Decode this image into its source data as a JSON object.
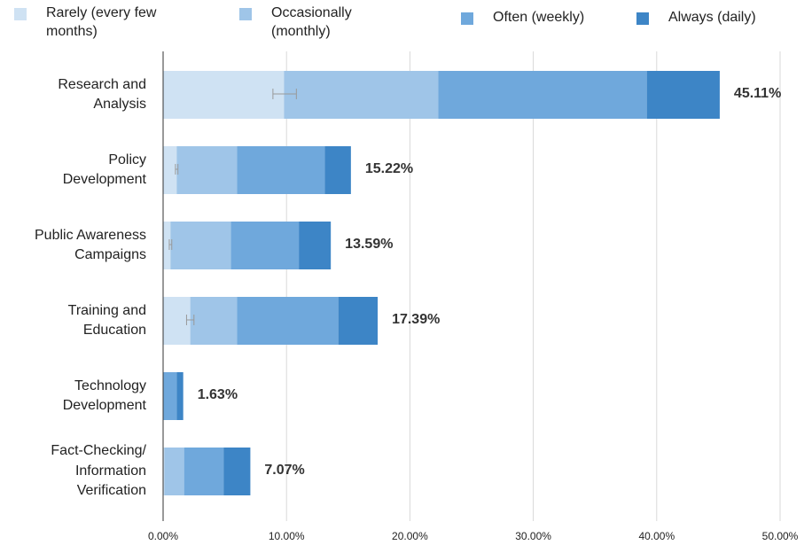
{
  "chart_data": {
    "type": "bar",
    "orientation": "horizontal",
    "stacked": true,
    "title": "",
    "xlabel": "",
    "ylabel": "",
    "xlim": [
      0,
      50
    ],
    "x_ticks": [
      "0.00%",
      "10.00%",
      "20.00%",
      "30.00%",
      "40.00%",
      "50.00%"
    ],
    "grid": true,
    "legend_position": "top",
    "categories": [
      [
        "Research and",
        "Analysis"
      ],
      [
        "Policy",
        "Development"
      ],
      [
        "Public Awareness",
        "Campaigns"
      ],
      [
        "Training and",
        "Education"
      ],
      [
        "Technology",
        "Development"
      ],
      [
        "Fact-Checking/",
        "Information",
        "Verification"
      ]
    ],
    "series": [
      {
        "name": [
          "Rarely (every few",
          "months)"
        ],
        "color": "#cfe2f3",
        "values": [
          9.8,
          1.1,
          0.6,
          2.2,
          0.0,
          0.1
        ]
      },
      {
        "name": [
          "Occasionally",
          "(monthly)"
        ],
        "color": "#9fc5e8",
        "values": [
          12.5,
          4.9,
          4.9,
          3.8,
          0.0,
          1.6
        ]
      },
      {
        "name": [
          "Often (weekly)"
        ],
        "color": "#6fa8dc",
        "values": [
          16.9,
          7.1,
          5.5,
          8.2,
          1.1,
          3.2
        ]
      },
      {
        "name": [
          "Always (daily)"
        ],
        "color": "#3d85c6",
        "values": [
          5.91,
          2.12,
          2.59,
          3.19,
          0.53,
          2.17
        ]
      }
    ],
    "totals": [
      "45.11%",
      "15.22%",
      "13.59%",
      "17.39%",
      "1.63%",
      "7.07%"
    ],
    "error_bars": [
      {
        "center": 9.8,
        "low": 8.9,
        "high": 10.8
      },
      {
        "center": 1.1,
        "low": 1.0,
        "high": 1.2
      },
      {
        "center": 0.6,
        "low": 0.5,
        "high": 0.7
      },
      {
        "center": 2.2,
        "low": 1.9,
        "high": 2.5
      },
      null,
      null
    ]
  }
}
